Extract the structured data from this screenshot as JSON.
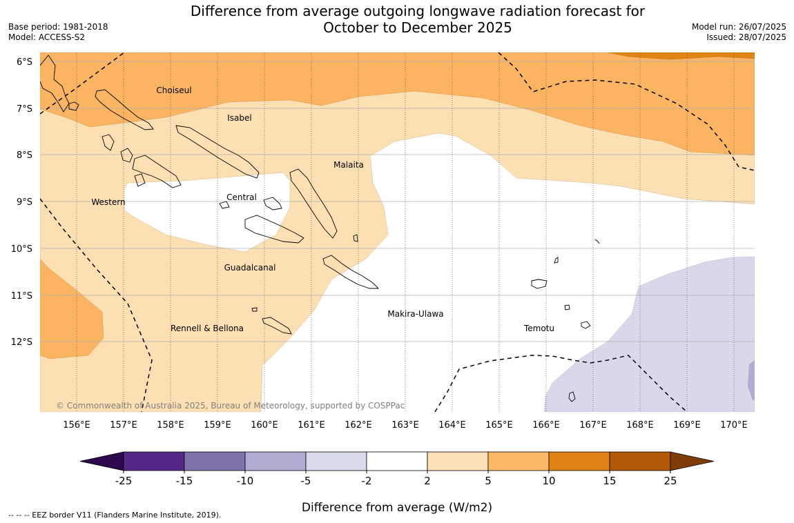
{
  "header": {
    "title_line1": "Difference from average outgoing longwave radiation forecast for",
    "title_line2": "October to December 2025",
    "base_period": "Base period: 1981-2018",
    "model": "Model: ACCESS-S2",
    "model_run": "Model run: 26/07/2025",
    "issued": "Issued: 28/07/2025"
  },
  "map": {
    "lat_labels": [
      "6°S",
      "7°S",
      "8°S",
      "9°S",
      "10°S",
      "11°S",
      "12°S"
    ],
    "lon_labels": [
      "156°E",
      "157°E",
      "158°E",
      "159°E",
      "160°E",
      "161°E",
      "162°E",
      "163°E",
      "164°E",
      "165°E",
      "166°E",
      "167°E",
      "168°E",
      "169°E",
      "170°E"
    ],
    "regions": [
      "Choiseul",
      "Isabel",
      "Malaita",
      "Western",
      "Central",
      "Guadalcanal",
      "Makira-Ulawa",
      "Temotu",
      "Rennell & Bellona"
    ],
    "copyright": "© Commonwealth of Australia 2025, Bureau of Meteorology, supported by COSPPac",
    "colors": {
      "pos_2_5": "#fddfb4",
      "pos_5_10": "#fbb462",
      "pos_10_15": "#e08414",
      "neg_5_2": "#d8d8ea"
    }
  },
  "colorbar": {
    "ticks": [
      "-25",
      "-15",
      "-10",
      "-5",
      "-2",
      "2",
      "5",
      "10",
      "15",
      "25"
    ],
    "colors": [
      "#2d0a4e",
      "#542788",
      "#8073ac",
      "#b2abd2",
      "#d8daeb",
      "#ffffff",
      "#fee0b6",
      "#fdb863",
      "#e08214",
      "#b35806",
      "#7f3b08"
    ],
    "label": "Difference from average (W/m2)"
  },
  "footnote": "--  --  -- EEZ border V11 (Flanders Marine Institute, 2019)."
}
